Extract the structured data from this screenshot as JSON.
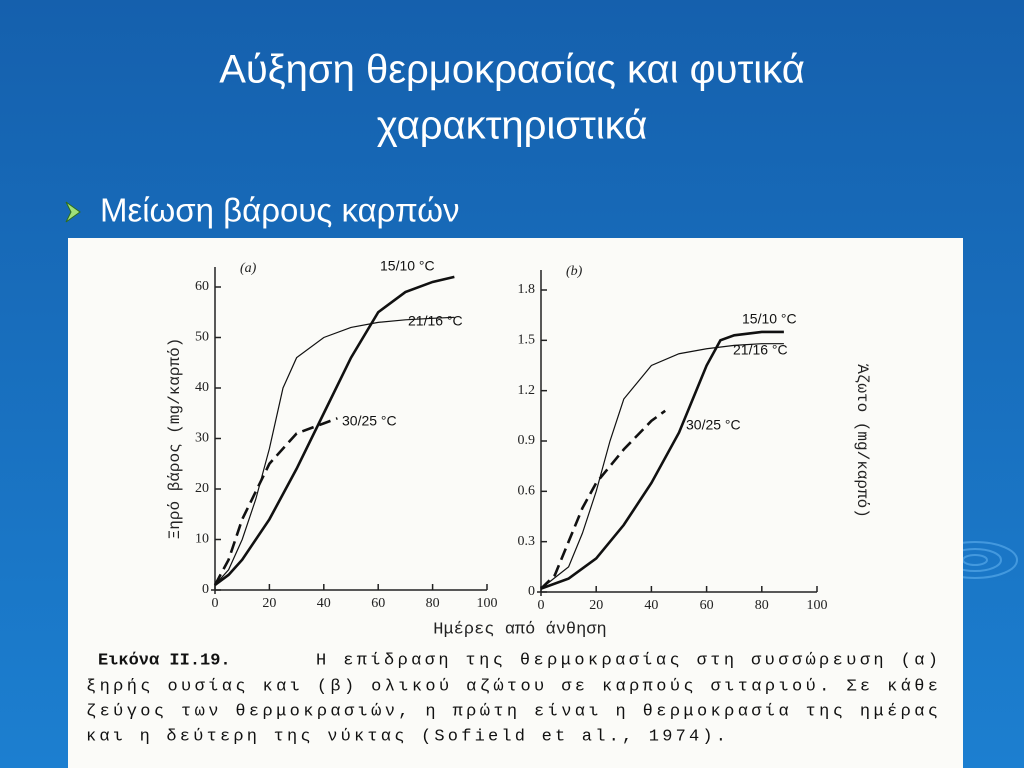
{
  "slide": {
    "title_lines": [
      "Αύξηση θερμοκρασίας και φυτικά",
      "χαρακτηριστικά"
    ],
    "bullet": "Μείωση βάρους καρπών"
  },
  "figure": {
    "xlabel": "Ημέρες από άνθηση",
    "caption_head": "Εικόνα ΙΙ.19.",
    "caption_lines": [
      "Η επίδραση της θερμοκρασίας στη συσσώρευση (α)",
      "ξηρής ουσίας και (β) ολικού αζώτου σε καρπούς σιταριού. Σε κάθε",
      "ζεύγος των θερμοκρασιών, η πρώτη είναι η θερμοκρασία της ημέρας",
      "και η δεύτερη της νύκτας (Sofield et al., 1974)."
    ]
  },
  "chart_data": [
    {
      "type": "line",
      "panel": "(a)",
      "ylabel": "Ξηρό βάρος (mg/καρπό)",
      "xlim": [
        0,
        100
      ],
      "xticks": [
        0,
        20,
        40,
        60,
        80,
        100
      ],
      "ylim": [
        0,
        60
      ],
      "yticks": [
        0,
        10,
        20,
        30,
        40,
        50,
        60
      ],
      "series": [
        {
          "name": "15/10 °C",
          "color": "#111111",
          "dash": false,
          "x": [
            0,
            5,
            10,
            20,
            30,
            40,
            50,
            60,
            70,
            80,
            88
          ],
          "values": [
            1,
            3,
            6,
            14,
            24,
            35,
            46,
            55,
            59,
            61,
            62
          ]
        },
        {
          "name": "21/16 °C",
          "color": "#111111",
          "dash": false,
          "x": [
            0,
            5,
            10,
            15,
            20,
            25,
            30,
            40,
            50,
            60,
            70,
            80,
            88
          ],
          "values": [
            1,
            4,
            10,
            18,
            28,
            40,
            46,
            50,
            52,
            53,
            53.5,
            53.8,
            54
          ]
        },
        {
          "name": "30/25 °C",
          "color": "#111111",
          "dash": true,
          "x": [
            0,
            5,
            10,
            20,
            30,
            40,
            45
          ],
          "values": [
            1,
            6,
            14,
            25,
            31,
            33,
            34
          ]
        }
      ]
    },
    {
      "type": "line",
      "panel": "(b)",
      "ylabel": "Άζωτο (mg/καρπό)",
      "xlim": [
        0,
        100
      ],
      "xticks": [
        0,
        20,
        40,
        60,
        80,
        100
      ],
      "ylim": [
        0,
        1.8
      ],
      "yticks": [
        0,
        0.3,
        0.6,
        0.9,
        1.2,
        1.5,
        1.8
      ],
      "series": [
        {
          "name": "15/10 °C",
          "color": "#111111",
          "dash": false,
          "x": [
            0,
            10,
            20,
            30,
            40,
            50,
            60,
            65,
            70,
            80,
            88
          ],
          "values": [
            0.02,
            0.08,
            0.2,
            0.4,
            0.65,
            0.95,
            1.35,
            1.5,
            1.53,
            1.55,
            1.55
          ]
        },
        {
          "name": "21/16 °C",
          "color": "#111111",
          "dash": false,
          "x": [
            0,
            10,
            15,
            20,
            25,
            30,
            40,
            50,
            60,
            70,
            80,
            88
          ],
          "values": [
            0.02,
            0.15,
            0.35,
            0.6,
            0.9,
            1.15,
            1.35,
            1.42,
            1.45,
            1.47,
            1.48,
            1.48
          ]
        },
        {
          "name": "30/25 °C",
          "color": "#111111",
          "dash": true,
          "x": [
            0,
            5,
            10,
            15,
            20,
            30,
            40,
            45
          ],
          "values": [
            0.02,
            0.1,
            0.3,
            0.5,
            0.65,
            0.85,
            1.02,
            1.08
          ]
        }
      ]
    }
  ]
}
